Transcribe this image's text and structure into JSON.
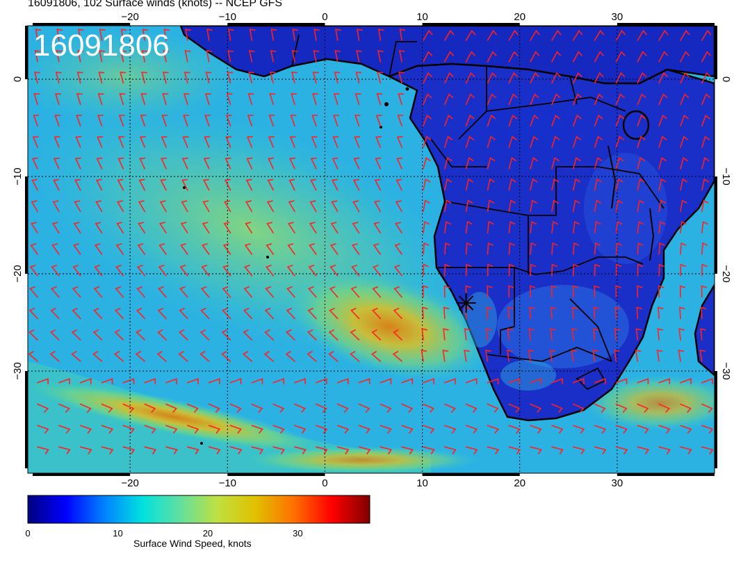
{
  "title": "16091806, 102 Surface winds (knots) -- NCEP GFS",
  "map": {
    "timestamp": "16091806",
    "lon_ticks": [
      "−20",
      "−10",
      "0",
      "10",
      "20",
      "30"
    ],
    "lon_tick_values": [
      -20,
      -10,
      0,
      10,
      20,
      30
    ],
    "lat_ticks": [
      "0",
      "−10",
      "−20",
      "−30"
    ],
    "lat_tick_values": [
      0,
      -10,
      -20,
      -30
    ],
    "lon_range": [
      -30.5,
      40
    ],
    "lat_range": [
      -40.5,
      5.5
    ],
    "wind_barb_color": "#ff2020",
    "coastline_color": "#000000",
    "station_marker": {
      "icon": "star-marker-icon",
      "lon": 14.5,
      "lat": -23
    }
  },
  "colorbar": {
    "label": "Surface Wind Speed, knots",
    "ticks": [
      "0",
      "10",
      "20",
      "30"
    ],
    "tick_values": [
      0,
      10,
      20,
      30
    ],
    "range": [
      0,
      38
    ],
    "colors": [
      "#00007f",
      "#0000ff",
      "#0080ff",
      "#00e0e0",
      "#60e0a0",
      "#c0e040",
      "#e0c000",
      "#ff7000",
      "#ff0000",
      "#7f0000"
    ]
  }
}
